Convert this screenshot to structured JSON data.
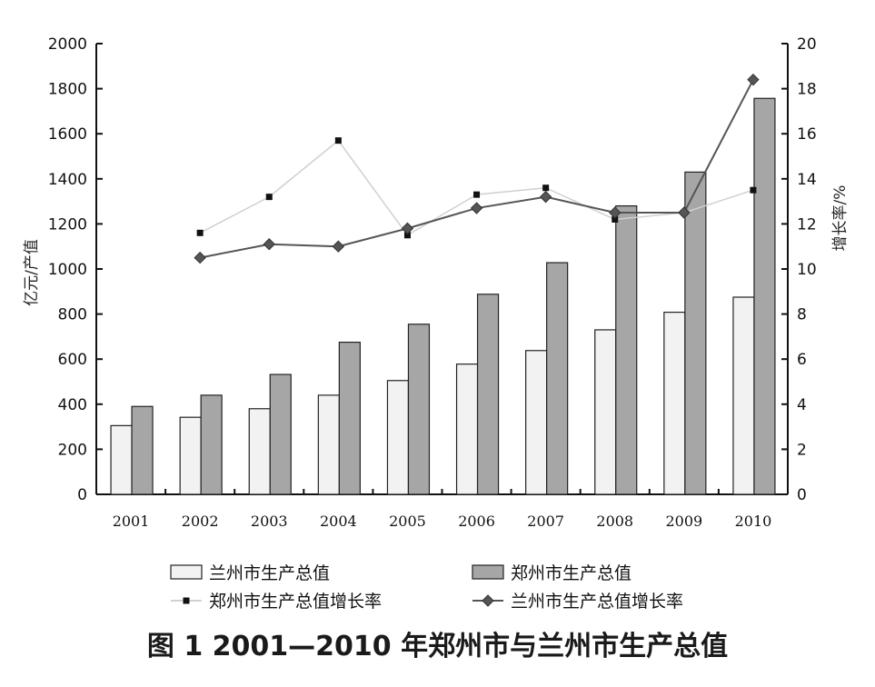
{
  "caption": "图 1   2001—2010 年郑州市与兰州市生产总值",
  "chart_data": {
    "type": "bar",
    "categories": [
      "2001",
      "2002",
      "2003",
      "2004",
      "2005",
      "2006",
      "2007",
      "2008",
      "2009",
      "2010"
    ],
    "series": [
      {
        "name": "兰州市生产总值",
        "kind": "bar",
        "axis": "left",
        "color": "#f2f2f2",
        "values": [
          305,
          342,
          380,
          440,
          505,
          578,
          638,
          730,
          808,
          875
        ]
      },
      {
        "name": "郑州市生产总值",
        "kind": "bar",
        "axis": "left",
        "color": "#a6a6a6",
        "values": [
          390,
          440,
          532,
          675,
          755,
          888,
          1028,
          1280,
          1430,
          1757
        ]
      },
      {
        "name": "郑州市生产总值增长率",
        "kind": "line",
        "axis": "right",
        "color": "#d0d0d0",
        "marker": "square",
        "values": [
          null,
          11.6,
          13.2,
          15.7,
          11.5,
          13.3,
          13.6,
          12.2,
          12.5,
          13.5
        ]
      },
      {
        "name": "兰州市生产总值增长率",
        "kind": "line",
        "axis": "right",
        "color": "#555555",
        "marker": "diamond",
        "values": [
          null,
          10.5,
          11.1,
          11.0,
          11.8,
          12.7,
          13.2,
          12.5,
          12.5,
          18.4
        ]
      }
    ],
    "ylabel": "亿元/产值",
    "y2label": "增长率/%",
    "ylim": [
      0,
      2000
    ],
    "y2lim": [
      0,
      20
    ],
    "yticks": [
      0,
      200,
      400,
      600,
      800,
      1000,
      1200,
      1400,
      1600,
      1800,
      2000
    ],
    "y2ticks": [
      0,
      2,
      4,
      6,
      8,
      10,
      12,
      14,
      16,
      18,
      20
    ],
    "grid": false,
    "legend_position": "bottom"
  }
}
